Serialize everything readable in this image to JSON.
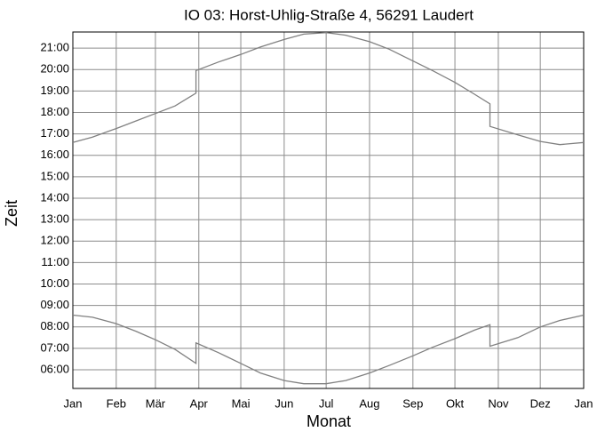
{
  "chart_data": {
    "type": "line",
    "title": "IO 03: Horst-Uhlig-Straße 4, 56291 Laudert",
    "xlabel": "Monat",
    "ylabel": "Zeit",
    "x": [
      0,
      14,
      31,
      45,
      59,
      73,
      88,
      88,
      104,
      120,
      134,
      151,
      165,
      181,
      195,
      212,
      226,
      243,
      257,
      273,
      287,
      298,
      298,
      318,
      334,
      348,
      365
    ],
    "series": [
      {
        "color": "#808080",
        "values": [
          16.6,
          16.85,
          17.25,
          17.6,
          17.95,
          18.3,
          18.9,
          19.95,
          20.35,
          20.7,
          21.05,
          21.4,
          21.65,
          21.72,
          21.6,
          21.3,
          20.95,
          20.4,
          19.95,
          19.4,
          18.85,
          18.4,
          17.35,
          16.95,
          16.65,
          16.5,
          16.6
        ]
      },
      {
        "color": "#808080",
        "values": [
          8.55,
          8.45,
          8.15,
          7.8,
          7.4,
          6.95,
          6.3,
          7.25,
          6.8,
          6.3,
          5.85,
          5.5,
          5.35,
          5.35,
          5.5,
          5.85,
          6.2,
          6.65,
          7.05,
          7.45,
          7.85,
          8.1,
          7.1,
          7.5,
          8.0,
          8.3,
          8.55
        ]
      }
    ],
    "xlim": [
      0,
      365
    ],
    "xticks": [
      {
        "value": 0,
        "label": "Jan"
      },
      {
        "value": 31,
        "label": "Feb"
      },
      {
        "value": 59,
        "label": "Mär"
      },
      {
        "value": 90,
        "label": "Apr"
      },
      {
        "value": 120,
        "label": "Mai"
      },
      {
        "value": 151,
        "label": "Jun"
      },
      {
        "value": 181,
        "label": "Jul"
      },
      {
        "value": 212,
        "label": "Aug"
      },
      {
        "value": 243,
        "label": "Sep"
      },
      {
        "value": 273,
        "label": "Okt"
      },
      {
        "value": 304,
        "label": "Nov"
      },
      {
        "value": 334,
        "label": "Dez"
      },
      {
        "value": 365,
        "label": "Jan"
      }
    ],
    "ylim": [
      5.13,
      21.75
    ],
    "yticks": [
      {
        "value": 6,
        "label": "06:00"
      },
      {
        "value": 7,
        "label": "07:00"
      },
      {
        "value": 8,
        "label": "08:00"
      },
      {
        "value": 9,
        "label": "09:00"
      },
      {
        "value": 10,
        "label": "10:00"
      },
      {
        "value": 11,
        "label": "11:00"
      },
      {
        "value": 12,
        "label": "12:00"
      },
      {
        "value": 13,
        "label": "13:00"
      },
      {
        "value": 14,
        "label": "14:00"
      },
      {
        "value": 15,
        "label": "15:00"
      },
      {
        "value": 16,
        "label": "16:00"
      },
      {
        "value": 17,
        "label": "17:00"
      },
      {
        "value": 18,
        "label": "18:00"
      },
      {
        "value": 19,
        "label": "19:00"
      },
      {
        "value": 20,
        "label": "20:00"
      },
      {
        "value": 21,
        "label": "21:00"
      }
    ],
    "grid": true
  }
}
